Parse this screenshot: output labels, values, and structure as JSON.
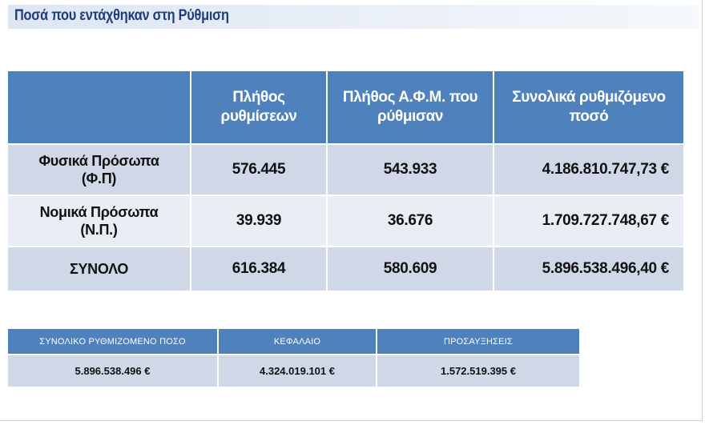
{
  "title": "Ποσά που εντάχθηκαν στη Ρύθμιση",
  "main_table": {
    "headers": {
      "col0": "",
      "col1_line1": "Πλήθος",
      "col1_line2": "ρυθμίσεων",
      "col2_line1": "Πλήθος Α.Φ.Μ. που",
      "col2_line2": "ρύθμισαν",
      "col3_line1": "Συνολικά ρυθμιζόμενο",
      "col3_line2": "ποσό"
    },
    "rows": [
      {
        "label_line1": "Φυσικά Πρόσωπα",
        "label_line2": "(Φ.Π)",
        "settlements": "576.445",
        "afm_count": "543.933",
        "amount": "4.186.810.747,73 €"
      },
      {
        "label_line1": "Νομικά Πρόσωπα",
        "label_line2": "(Ν.Π.)",
        "settlements": "39.939",
        "afm_count": "36.676",
        "amount": "1.709.727.748,67 €"
      },
      {
        "label_line1": "ΣΥΝΟΛΟ",
        "label_line2": "",
        "settlements": "616.384",
        "afm_count": "580.609",
        "amount": "5.896.538.496,40 €"
      }
    ]
  },
  "summary_table": {
    "headers": {
      "total": "ΣΥΝΟΛΙΚΟ ΡΥΘΜΙΖΟΜΕΝΟ ΠΟΣΟ",
      "capital": "ΚΕΦΑΛΑΙΟ",
      "surcharges": "ΠΡΟΣΑΥΞΗΣΕΙΣ"
    },
    "values": {
      "total": "5.896.538.496 €",
      "capital": "4.324.019.101 €",
      "surcharges": "1.572.519.395 €"
    }
  },
  "colors": {
    "header_blue": "#4f81bd",
    "row_dark": "#d0d8e8",
    "row_light": "#e9edf4",
    "title_text": "#1f3d7a"
  }
}
